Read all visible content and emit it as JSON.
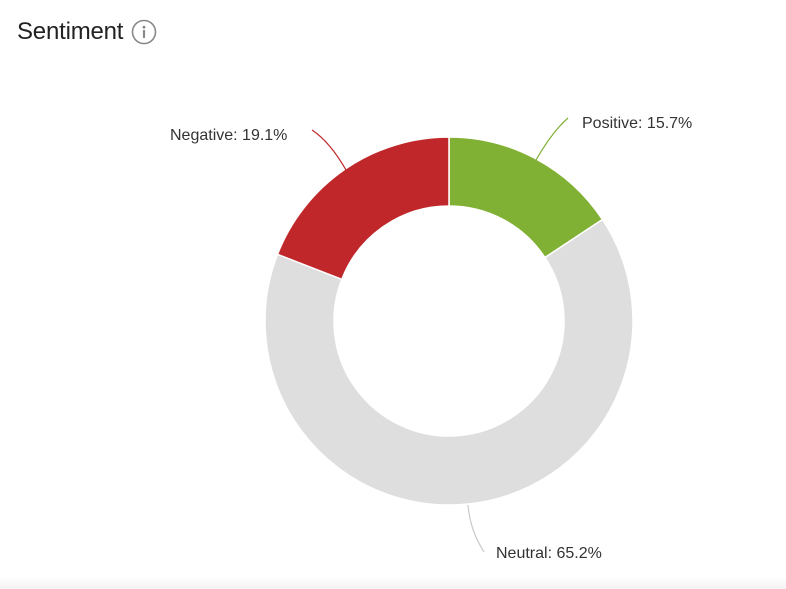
{
  "header": {
    "title": "Sentiment",
    "info_icon": "info-circle-icon"
  },
  "chart_data": {
    "type": "pie",
    "variant": "donut",
    "slices": [
      {
        "name": "Positive",
        "value": 15.7,
        "label": "Positive: 15.7%",
        "color": "#80b034"
      },
      {
        "name": "Neutral",
        "value": 65.2,
        "label": "Neutral: 65.2%",
        "color": "#dedede"
      },
      {
        "name": "Negative",
        "value": 19.1,
        "label": "Negative: 19.1%",
        "color": "#c0272b"
      }
    ],
    "start_angle": "12 o'clock",
    "direction": "clockwise",
    "legend": "none"
  }
}
